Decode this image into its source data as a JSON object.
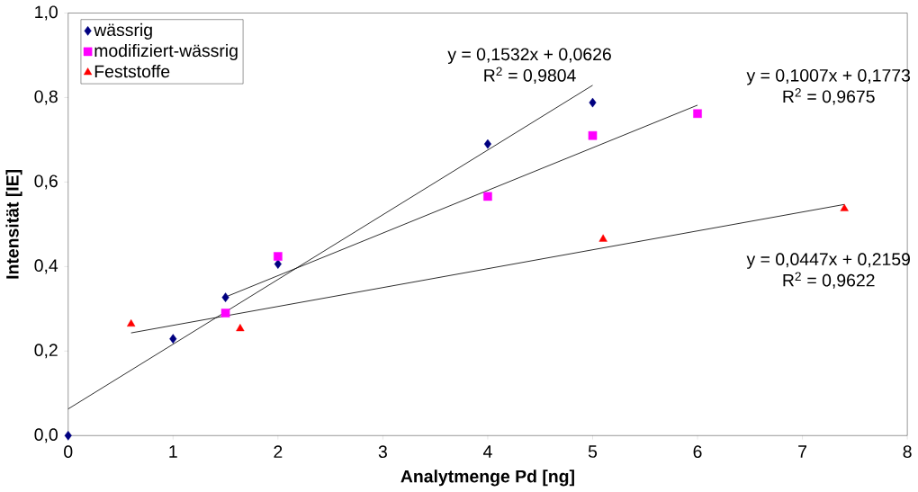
{
  "chart_data": {
    "type": "scatter",
    "xlabel": "Analytmenge Pd [ng]",
    "ylabel": "Intensität [IE]",
    "xlim": [
      0,
      8
    ],
    "ylim": [
      0,
      1
    ],
    "xticks": [
      0,
      1,
      2,
      3,
      4,
      5,
      6,
      7,
      8
    ],
    "yticks": [
      {
        "value": 0,
        "label": "0,0"
      },
      {
        "value": 0.2,
        "label": "0,2"
      },
      {
        "value": 0.4,
        "label": "0,4"
      },
      {
        "value": 0.6,
        "label": "0,6"
      },
      {
        "value": 0.8,
        "label": "0,8"
      },
      {
        "value": 1,
        "label": "1,0"
      }
    ],
    "legend": "top left",
    "grid": false,
    "series": [
      {
        "name": "wässrig",
        "color": "#000080",
        "marker": "diamond",
        "x": [
          0,
          1,
          1.5,
          2,
          4,
          5
        ],
        "values": [
          0,
          0.229,
          0.327,
          0.406,
          0.69,
          0.788
        ]
      },
      {
        "name": "modifiziert-wässrig",
        "color": "#ff00ff",
        "marker": "square",
        "x": [
          1.5,
          2,
          4,
          5,
          6
        ],
        "values": [
          0.29,
          0.424,
          0.566,
          0.71,
          0.762
        ]
      },
      {
        "name": "Feststoffe",
        "color": "#ff0000",
        "marker": "triangle",
        "x": [
          0.6,
          1.64,
          5.1,
          7.4
        ],
        "values": [
          0.264,
          0.253,
          0.465,
          0.537
        ]
      },
      {
        "type": "line",
        "color": "#000000",
        "marker": "none",
        "x": [
          0,
          5
        ],
        "values": [
          0.063,
          0.829
        ]
      },
      {
        "type": "line",
        "color": "#000000",
        "marker": "none",
        "x": [
          1.5,
          6
        ],
        "values": [
          0.328,
          0.782
        ]
      },
      {
        "type": "line",
        "color": "#000000",
        "marker": "none",
        "x": [
          0.6,
          7.4
        ],
        "values": [
          0.243,
          0.547
        ]
      }
    ],
    "annotations": [
      "y = 0,1532x + 0,0626",
      "R$^{2}$ = 0,9804",
      "y = 0,1007x + 0,1773",
      "R$^{2}$ = 0,9675",
      "y = 0,0447x + 0,2159",
      "R$^{2}$ = 0,9622"
    ]
  }
}
